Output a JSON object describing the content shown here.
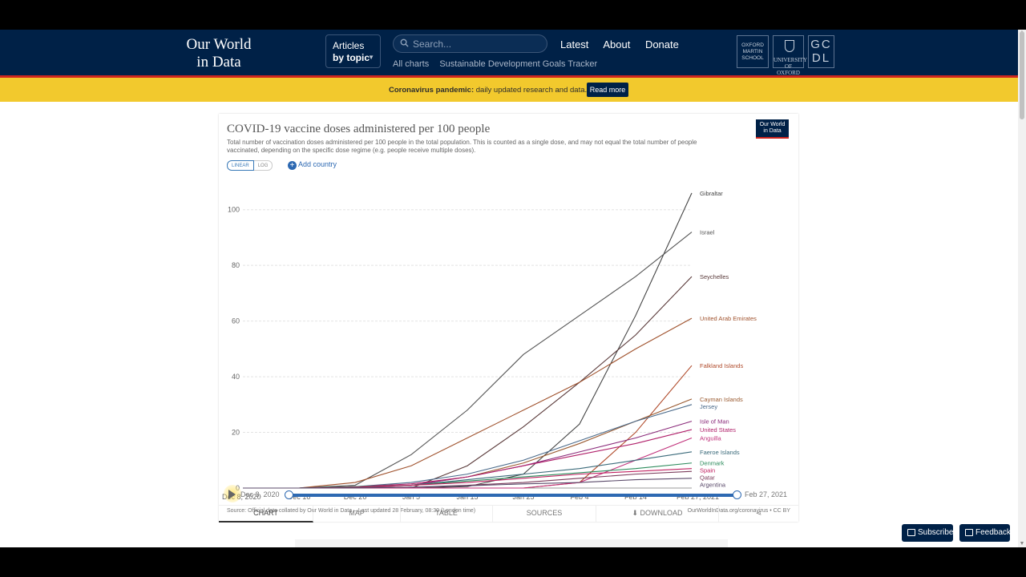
{
  "header": {
    "logo_line1": "Our World",
    "logo_line2": "in Data",
    "topic_line1": "Articles",
    "topic_line2": "by topic",
    "search_placeholder": "Search...",
    "nav": [
      "Latest",
      "About",
      "Donate"
    ],
    "sublinks": [
      "All charts",
      "Sustainable Development Goals Tracker"
    ],
    "partners": {
      "oxford_martin": [
        "OXFORD",
        "MARTIN",
        "SCHOOL"
      ],
      "university": [
        "UNIVERSITY OF",
        "OXFORD"
      ],
      "gcdl": [
        "GC",
        "DL"
      ]
    }
  },
  "banner": {
    "bold": "Coronavirus pandemic:",
    "text": " daily updated research and data.",
    "button": "Read more"
  },
  "card": {
    "title": "COVID-19 vaccine doses administered per 100 people",
    "subtitle": "Total number of vaccination doses administered per 100 people in the total population. This is counted as a single dose, and may not equal the total number of people vaccinated, depending on the specific dose regime (e.g. people receive multiple doses).",
    "badge_line1": "Our World",
    "badge_line2": "in Data",
    "scale_linear": "LINEAR",
    "scale_log": "LOG",
    "add_country": "Add country",
    "source": "Source: Official data collated by Our World in Data – Last updated 28 February, 08:30 (London time)",
    "source_right": "OurWorldInData.org/coronavirus • CC BY"
  },
  "timeline": {
    "start": "Dec 8, 2020",
    "end": "Feb 27, 2021",
    "start_fraction": 0,
    "end_fraction": 1
  },
  "tabs": [
    "CHART",
    "MAP",
    "TABLE",
    "SOURCES",
    "DOWNLOAD"
  ],
  "footer_buttons": {
    "subscribe": "Subscribe",
    "feedback": "Feedback"
  },
  "chart_data": {
    "type": "line",
    "title": "COVID-19 vaccine doses administered per 100 people",
    "ylim": [
      0,
      110
    ],
    "yticks": [
      0,
      20,
      40,
      60,
      80,
      100
    ],
    "xticks": [
      "Dec 8, 2020",
      "Dec 16",
      "Dec 26",
      "Jan 5",
      "Jan 15",
      "Jan 25",
      "Feb 4",
      "Feb 14",
      "Feb 27, 2021"
    ],
    "x": [
      "Dec 8",
      "Dec 16",
      "Dec 26",
      "Jan 5",
      "Jan 15",
      "Jan 25",
      "Feb 4",
      "Feb 14",
      "Feb 27"
    ],
    "grid": true,
    "series": [
      {
        "name": "Gibraltar",
        "color": "#444444",
        "values": [
          0,
          0,
          0,
          0,
          0.5,
          5,
          23,
          62,
          106
        ]
      },
      {
        "name": "Israel",
        "color": "#555555",
        "values": [
          0,
          0,
          1,
          12,
          28,
          48,
          62,
          76,
          92
        ]
      },
      {
        "name": "Seychelles",
        "color": "#5a3a3a",
        "values": [
          0,
          0,
          0,
          0,
          8,
          22,
          38,
          55,
          76
        ]
      },
      {
        "name": "United Arab Emirates",
        "color": "#a0522d",
        "values": [
          0,
          0,
          2,
          8,
          18,
          28,
          38,
          50,
          61
        ]
      },
      {
        "name": "Falkland Islands",
        "color": "#b04a2a",
        "values": [
          0,
          0,
          0,
          0,
          0,
          0,
          2,
          20,
          44
        ]
      },
      {
        "name": "Cayman Islands",
        "color": "#9a5a30",
        "values": [
          0,
          0,
          0,
          1,
          4,
          9,
          16,
          24,
          32
        ]
      },
      {
        "name": "Jersey",
        "color": "#4a6a8a",
        "values": [
          0,
          0,
          0.5,
          2,
          5,
          10,
          17,
          24,
          30
        ]
      },
      {
        "name": "Isle of Man",
        "color": "#8a2a7a",
        "values": [
          0,
          0,
          0,
          1,
          4,
          8,
          13,
          18,
          24
        ]
      },
      {
        "name": "United States",
        "color": "#b0206a",
        "values": [
          0,
          0,
          0.5,
          1.5,
          4,
          8,
          12,
          16,
          21
        ]
      },
      {
        "name": "Anguilla",
        "color": "#c0307a",
        "values": [
          0,
          0,
          0,
          0,
          0,
          0,
          2,
          10,
          18
        ]
      },
      {
        "name": "Faeroe Islands",
        "color": "#3a6a7a",
        "values": [
          0,
          0,
          0.5,
          1,
          3,
          5,
          7,
          10,
          13
        ]
      },
      {
        "name": "Denmark",
        "color": "#2a8a5a",
        "values": [
          0,
          0,
          0.5,
          1,
          2.5,
          4,
          5.5,
          7,
          9
        ]
      },
      {
        "name": "Spain",
        "color": "#c02060",
        "values": [
          0,
          0,
          0.3,
          1,
          2,
          3.5,
          5,
          6,
          7
        ]
      },
      {
        "name": "Qatar",
        "color": "#7a3a5a",
        "values": [
          0,
          0,
          0,
          0.3,
          1,
          2,
          3.5,
          5,
          6
        ]
      },
      {
        "name": "Argentina",
        "color": "#5a4a6a",
        "values": [
          0,
          0,
          0.1,
          0.3,
          0.8,
          1.5,
          2,
          3,
          3.5
        ]
      }
    ]
  }
}
